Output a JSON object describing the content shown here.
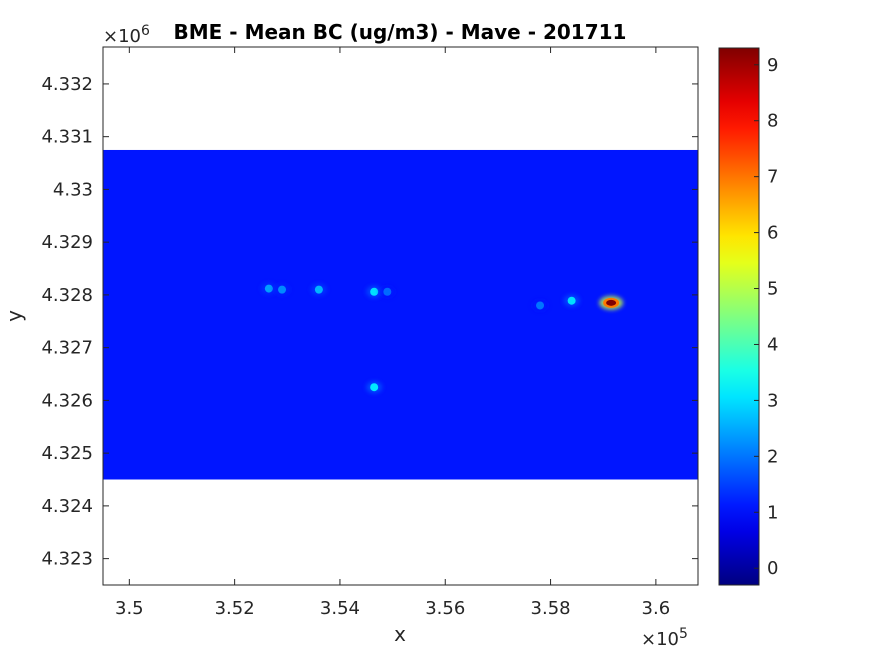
{
  "chart_data": {
    "type": "heatmap",
    "title": "BME - Mean BC (ug/m3) -  Mave - 201711",
    "xlabel": "x",
    "ylabel": "y",
    "x_exponent_label": "×10",
    "x_exponent_power": "5",
    "y_exponent_label": "×10",
    "y_exponent_power": "6",
    "xlim": [
      3.495,
      3.608
    ],
    "ylim": [
      4.3225,
      4.3327
    ],
    "x_ticks": [
      {
        "value": 3.5,
        "label": "3.5"
      },
      {
        "value": 3.52,
        "label": "3.52"
      },
      {
        "value": 3.54,
        "label": "3.54"
      },
      {
        "value": 3.56,
        "label": "3.56"
      },
      {
        "value": 3.58,
        "label": "3.58"
      },
      {
        "value": 3.6,
        "label": "3.6"
      }
    ],
    "y_ticks": [
      {
        "value": 4.323,
        "label": "4.323"
      },
      {
        "value": 4.324,
        "label": "4.324"
      },
      {
        "value": 4.325,
        "label": "4.325"
      },
      {
        "value": 4.326,
        "label": "4.326"
      },
      {
        "value": 4.327,
        "label": "4.327"
      },
      {
        "value": 4.328,
        "label": "4.328"
      },
      {
        "value": 4.329,
        "label": "4.329"
      },
      {
        "value": 4.33,
        "label": "4.33"
      },
      {
        "value": 4.331,
        "label": "4.331"
      },
      {
        "value": 4.332,
        "label": "4.332"
      }
    ],
    "field_extent": {
      "x": [
        3.495,
        3.608
      ],
      "y": [
        4.3245,
        4.33075
      ]
    },
    "background_value": 1.1,
    "hotspots": [
      {
        "x": 3.5265,
        "y": 4.32812,
        "value": 2.4
      },
      {
        "x": 3.529,
        "y": 4.3281,
        "value": 2.2
      },
      {
        "x": 3.536,
        "y": 4.3281,
        "value": 2.6
      },
      {
        "x": 3.5465,
        "y": 4.32806,
        "value": 3.0
      },
      {
        "x": 3.549,
        "y": 4.32806,
        "value": 1.9
      },
      {
        "x": 3.5465,
        "y": 4.32625,
        "value": 3.1
      },
      {
        "x": 3.578,
        "y": 4.3278,
        "value": 2.0
      },
      {
        "x": 3.584,
        "y": 4.32789,
        "value": 3.0
      },
      {
        "x": 3.5915,
        "y": 4.32785,
        "value": 9.3
      }
    ],
    "colorbar": {
      "min": -0.3,
      "max": 9.3,
      "colormap": "jet",
      "ticks": [
        {
          "value": 0,
          "label": "0"
        },
        {
          "value": 1,
          "label": "1"
        },
        {
          "value": 2,
          "label": "2"
        },
        {
          "value": 3,
          "label": "3"
        },
        {
          "value": 4,
          "label": "4"
        },
        {
          "value": 5,
          "label": "5"
        },
        {
          "value": 6,
          "label": "6"
        },
        {
          "value": 7,
          "label": "7"
        },
        {
          "value": 8,
          "label": "8"
        },
        {
          "value": 9,
          "label": "9"
        }
      ]
    }
  }
}
